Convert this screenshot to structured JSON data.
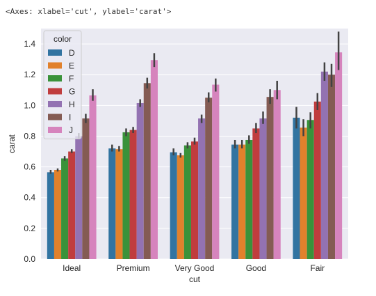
{
  "output_repr": "<Axes: xlabel='cut', ylabel='carat'>",
  "chart_data": {
    "type": "bar",
    "xlabel": "cut",
    "ylabel": "carat",
    "ylim": [
      0,
      1.5
    ],
    "yticks": [
      "0.0",
      "0.2",
      "0.4",
      "0.6",
      "0.8",
      "1.0",
      "1.2",
      "1.4"
    ],
    "grid": true,
    "legend_title": "color",
    "legend_placement": "upper left",
    "categories": [
      "Ideal",
      "Premium",
      "Very Good",
      "Good",
      "Fair"
    ],
    "series": [
      {
        "name": "D",
        "color": "#3274a1",
        "values": [
          0.565,
          0.72,
          0.695,
          0.745,
          0.92
        ],
        "ci": [
          [
            0.555,
            0.58
          ],
          [
            0.7,
            0.745
          ],
          [
            0.675,
            0.72
          ],
          [
            0.72,
            0.775
          ],
          [
            0.85,
            0.99
          ]
        ]
      },
      {
        "name": "E",
        "color": "#e1812c",
        "values": [
          0.58,
          0.715,
          0.675,
          0.745,
          0.855
        ],
        "ci": [
          [
            0.57,
            0.59
          ],
          [
            0.7,
            0.735
          ],
          [
            0.66,
            0.69
          ],
          [
            0.72,
            0.775
          ],
          [
            0.8,
            0.91
          ]
        ]
      },
      {
        "name": "F",
        "color": "#3a923a",
        "values": [
          0.655,
          0.825,
          0.74,
          0.775,
          0.905
        ],
        "ci": [
          [
            0.64,
            0.67
          ],
          [
            0.8,
            0.85
          ],
          [
            0.72,
            0.76
          ],
          [
            0.75,
            0.805
          ],
          [
            0.85,
            0.955
          ]
        ]
      },
      {
        "name": "G",
        "color": "#c03d3e",
        "values": [
          0.7,
          0.84,
          0.765,
          0.85,
          1.025
        ],
        "ci": [
          [
            0.69,
            0.715
          ],
          [
            0.82,
            0.86
          ],
          [
            0.745,
            0.79
          ],
          [
            0.82,
            0.885
          ],
          [
            0.97,
            1.08
          ]
        ]
      },
      {
        "name": "H",
        "color": "#9372b2",
        "values": [
          0.8,
          1.015,
          0.915,
          0.915,
          1.22
        ],
        "ci": [
          [
            0.785,
            0.82
          ],
          [
            0.99,
            1.04
          ],
          [
            0.885,
            0.94
          ],
          [
            0.88,
            0.96
          ],
          [
            1.16,
            1.28
          ]
        ]
      },
      {
        "name": "I",
        "color": "#845b53",
        "values": [
          0.915,
          1.145,
          1.05,
          1.055,
          1.2
        ],
        "ci": [
          [
            0.885,
            0.945
          ],
          [
            1.11,
            1.18
          ],
          [
            1.02,
            1.085
          ],
          [
            1.01,
            1.105
          ],
          [
            1.12,
            1.27
          ]
        ]
      },
      {
        "name": "J",
        "color": "#d684bd",
        "values": [
          1.065,
          1.295,
          1.135,
          1.1,
          1.345
        ],
        "ci": [
          [
            1.03,
            1.105
          ],
          [
            1.25,
            1.34
          ],
          [
            1.09,
            1.175
          ],
          [
            1.04,
            1.16
          ],
          [
            1.23,
            1.48
          ]
        ]
      }
    ]
  }
}
